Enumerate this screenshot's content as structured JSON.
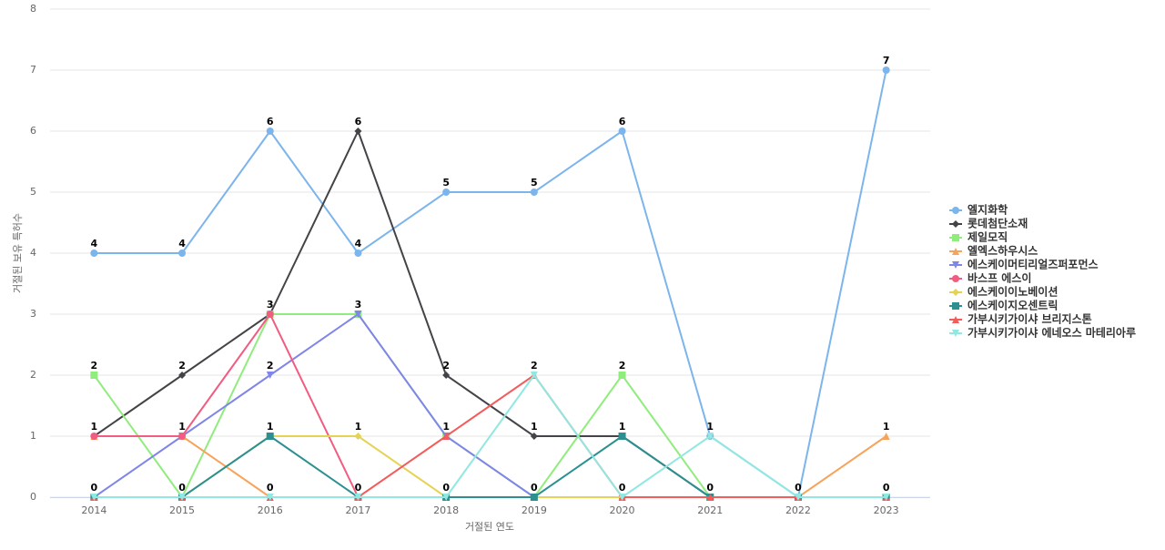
{
  "chart_data": {
    "type": "line",
    "x_label": "거절된 연도",
    "y_label": "거절된 보유 특허수",
    "categories": [
      "2014",
      "2015",
      "2016",
      "2017",
      "2018",
      "2019",
      "2020",
      "2021",
      "2022",
      "2023"
    ],
    "ylim": [
      0,
      8
    ],
    "yticks": [
      0,
      1,
      2,
      3,
      4,
      5,
      6,
      7,
      8
    ],
    "grid": true,
    "legend": "right",
    "series": [
      {
        "name": "엘지화학",
        "color": "#7cb5ec",
        "marker": "circle",
        "values": [
          4,
          4,
          6,
          4,
          5,
          5,
          6,
          1,
          0,
          7
        ]
      },
      {
        "name": "롯데첨단소재",
        "color": "#434348",
        "marker": "diamond",
        "values": [
          1,
          2,
          3,
          6,
          2,
          1,
          1,
          0,
          0,
          0
        ]
      },
      {
        "name": "제일모직",
        "color": "#90ed7d",
        "marker": "square",
        "values": [
          2,
          0,
          3,
          3,
          1,
          0,
          2,
          0,
          0,
          0
        ]
      },
      {
        "name": "엘엑스하우시스",
        "color": "#f7a35c",
        "marker": "triangle",
        "values": [
          1,
          1,
          0,
          0,
          0,
          0,
          0,
          0,
          0,
          1
        ]
      },
      {
        "name": "에스케이머티리얼즈퍼포먼스",
        "color": "#8085e9",
        "marker": "triangle-down",
        "values": [
          0,
          1,
          2,
          3,
          1,
          0,
          0,
          0,
          0,
          0
        ]
      },
      {
        "name": "바스프 에스이",
        "color": "#f15c80",
        "marker": "circle",
        "values": [
          1,
          1,
          3,
          0,
          0,
          0,
          0,
          0,
          0,
          0
        ]
      },
      {
        "name": "에스케이이노베이션",
        "color": "#e4d354",
        "marker": "diamond",
        "values": [
          0,
          0,
          1,
          1,
          0,
          0,
          0,
          0,
          0,
          0
        ]
      },
      {
        "name": "에스케이지오센트릭",
        "color": "#2b908f",
        "marker": "square",
        "values": [
          0,
          0,
          1,
          0,
          0,
          0,
          1,
          0,
          0,
          0
        ]
      },
      {
        "name": "가부시키가이샤 브리지스톤",
        "color": "#f45b5b",
        "marker": "triangle",
        "values": [
          0,
          0,
          0,
          0,
          1,
          2,
          0,
          0,
          0,
          0
        ]
      },
      {
        "name": "가부시키가이샤 에네오스 마테리아루",
        "color": "#91e8e1",
        "marker": "triangle-down",
        "values": [
          0,
          0,
          0,
          0,
          0,
          2,
          0,
          1,
          0,
          0
        ]
      }
    ]
  }
}
